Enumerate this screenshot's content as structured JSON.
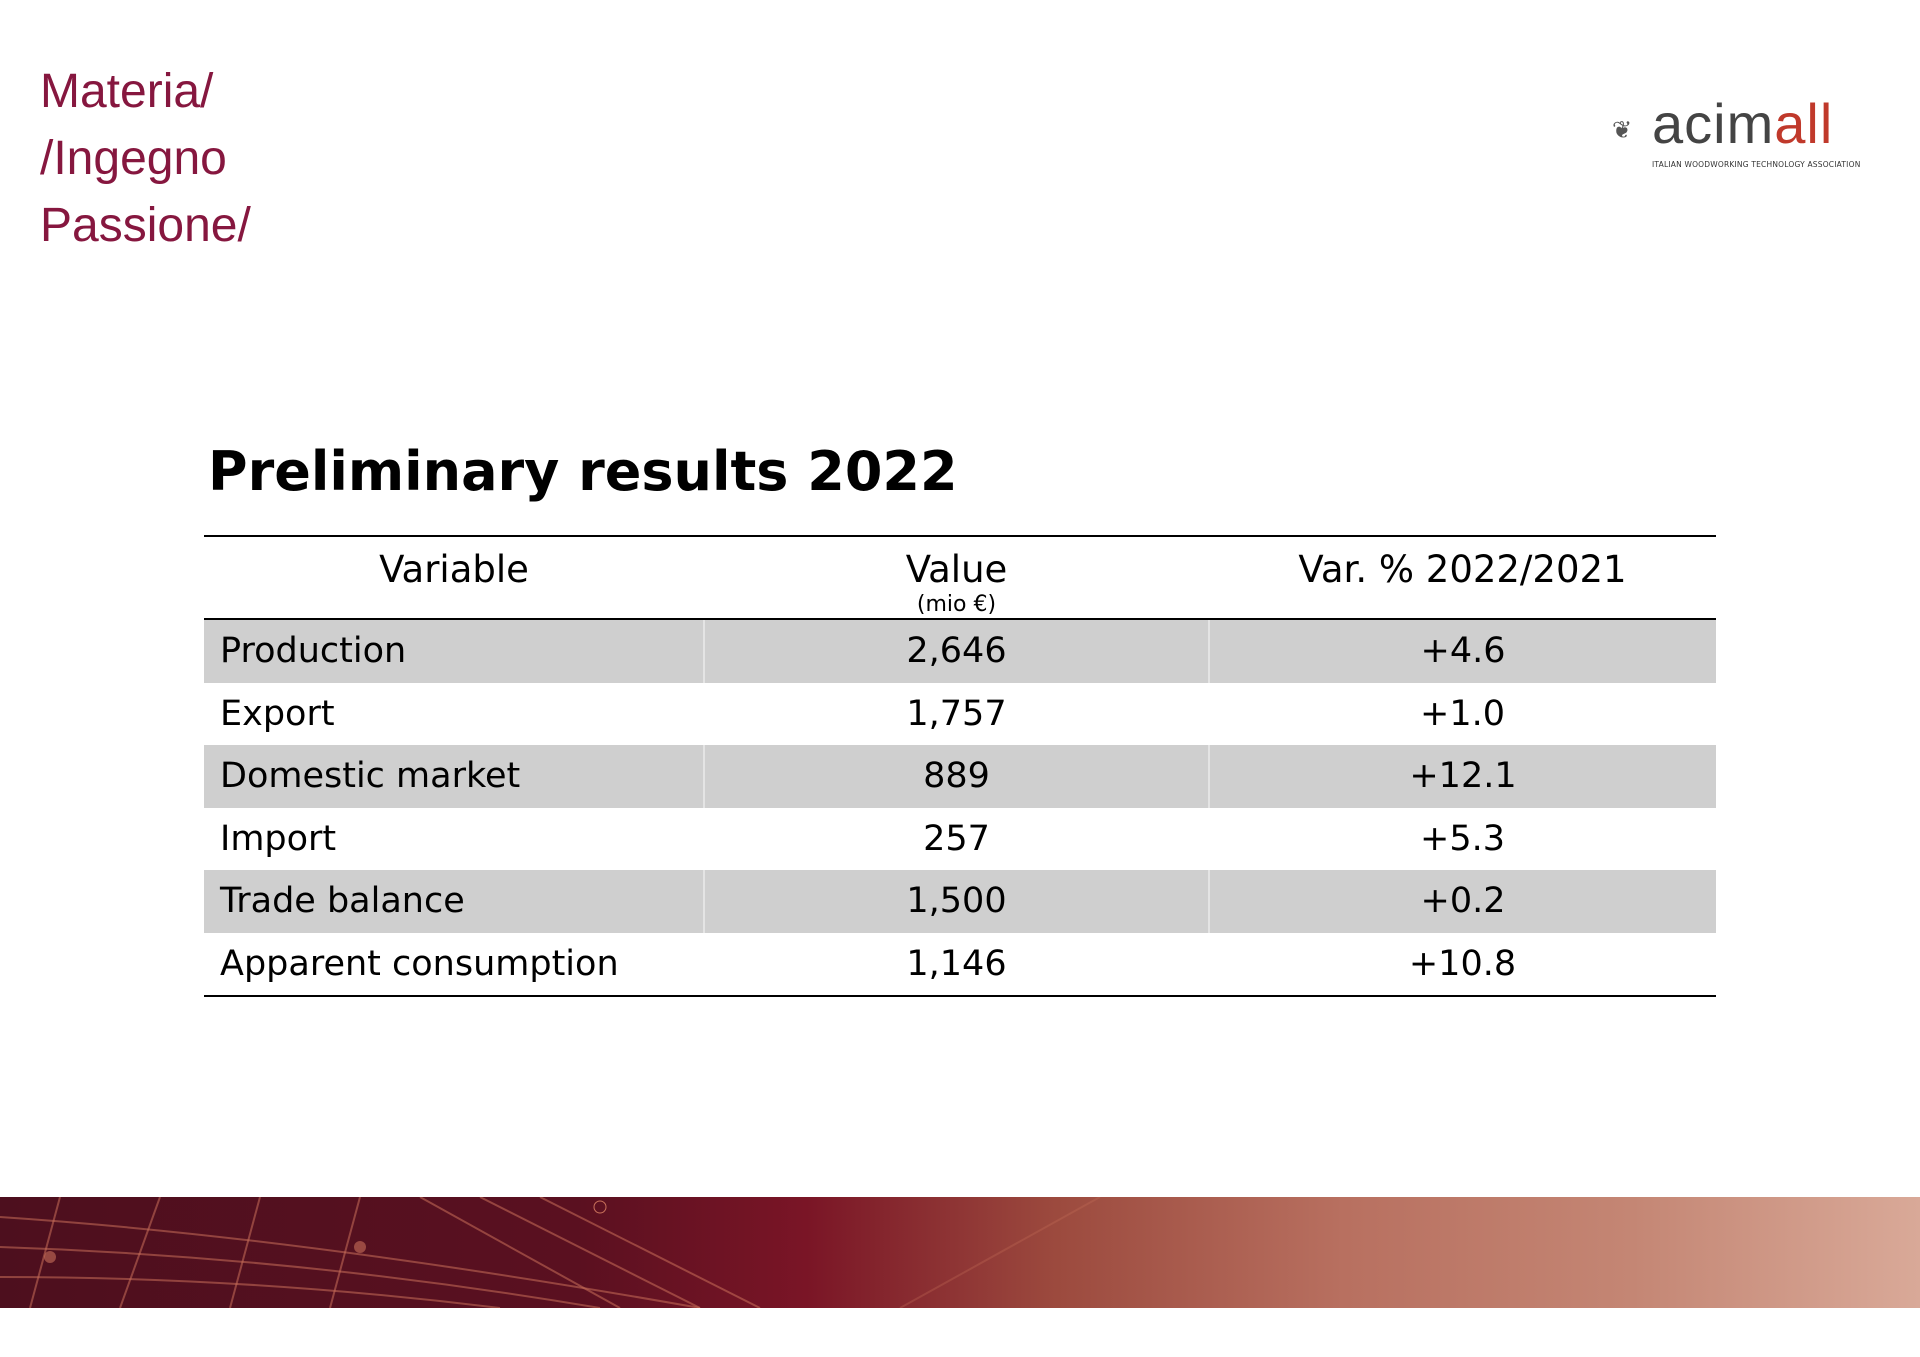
{
  "tagline": [
    "Materia/",
    "/Ingegno",
    "Passione/"
  ],
  "logo": {
    "word_prefix": "acim",
    "word_suffix": "all",
    "subtitle": "ITALIAN WOODWORKING TECHNOLOGY ASSOCIATION"
  },
  "title": "Preliminary results 2022",
  "table": {
    "headers": {
      "variable": "Variable",
      "value": "Value",
      "value_unit": "(mio €)",
      "variation": "Var. % 2022/2021"
    },
    "rows": [
      {
        "variable": "Production",
        "value": "2,646",
        "variation": "+4.6"
      },
      {
        "variable": "Export",
        "value": "1,757",
        "variation": "+1.0"
      },
      {
        "variable": "Domestic market",
        "value": "889",
        "variation": "+12.1"
      },
      {
        "variable": "Import",
        "value": "257",
        "variation": "+5.3"
      },
      {
        "variable": "Trade balance",
        "value": "1,500",
        "variation": "+0.2"
      },
      {
        "variable": "Apparent consumption",
        "value": "1,146",
        "variation": "+10.8"
      }
    ]
  },
  "colors": {
    "brand": "#86173f",
    "row_shade": "#cfcfcf"
  }
}
